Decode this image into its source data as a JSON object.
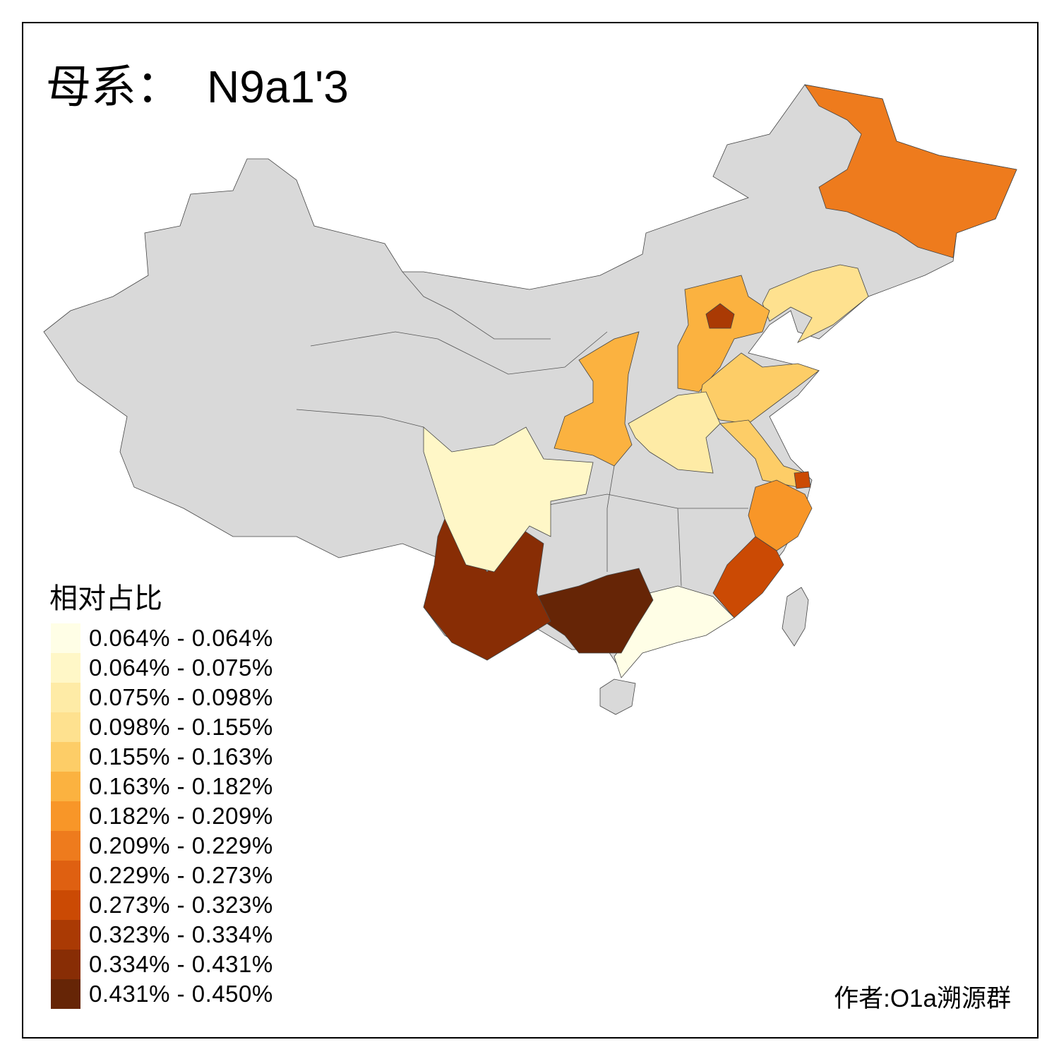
{
  "title": {
    "prefix": "母系：",
    "haplogroup": "N9a1'3"
  },
  "legend": {
    "title": "相对占比",
    "bins": [
      {
        "label": "0.064% - 0.064%",
        "color": "#fffee6"
      },
      {
        "label": "0.064% - 0.075%",
        "color": "#fff7c7"
      },
      {
        "label": "0.075% - 0.098%",
        "color": "#feeba6"
      },
      {
        "label": "0.098% - 0.155%",
        "color": "#fee18f"
      },
      {
        "label": "0.155% - 0.163%",
        "color": "#fdcd67"
      },
      {
        "label": "0.163% - 0.182%",
        "color": "#fbb240"
      },
      {
        "label": "0.182% - 0.209%",
        "color": "#f89628"
      },
      {
        "label": "0.209% - 0.229%",
        "color": "#ee7b1d"
      },
      {
        "label": "0.229% - 0.273%",
        "color": "#df6011"
      },
      {
        "label": "0.273% - 0.323%",
        "color": "#cb4a04"
      },
      {
        "label": "0.323% - 0.334%",
        "color": "#aa3a04"
      },
      {
        "label": "0.334% - 0.431%",
        "color": "#882d05"
      },
      {
        "label": "0.431% - 0.450%",
        "color": "#662506"
      }
    ]
  },
  "no_data_color": "#d9d9d9",
  "province_bins": {
    "heilongjiang": 7,
    "liaoning": 3,
    "hebei": 5,
    "beijing": 10,
    "shandong": 4,
    "shaanxi": 5,
    "henan": 2,
    "jiangsu": 4,
    "shanghai": 9,
    "zhejiang": 6,
    "fujian": 9,
    "guangdong": 0,
    "guangxi": 12,
    "yunnan": 11,
    "sichuan": 1
  },
  "author": "作者:O1a溯源群"
}
